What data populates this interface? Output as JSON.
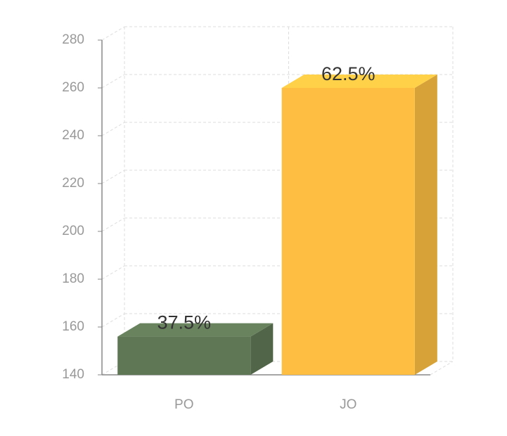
{
  "chart_data": {
    "type": "bar3d",
    "categories": [
      "PO",
      "JO"
    ],
    "values": [
      156,
      260
    ],
    "data_labels": [
      "37.5%",
      "62.5%"
    ],
    "colors": [
      "#5f7755",
      "#fdbe41"
    ],
    "ylim": [
      140,
      280
    ],
    "yticks": [
      140,
      160,
      180,
      200,
      220,
      240,
      260,
      280
    ],
    "grid": true
  }
}
